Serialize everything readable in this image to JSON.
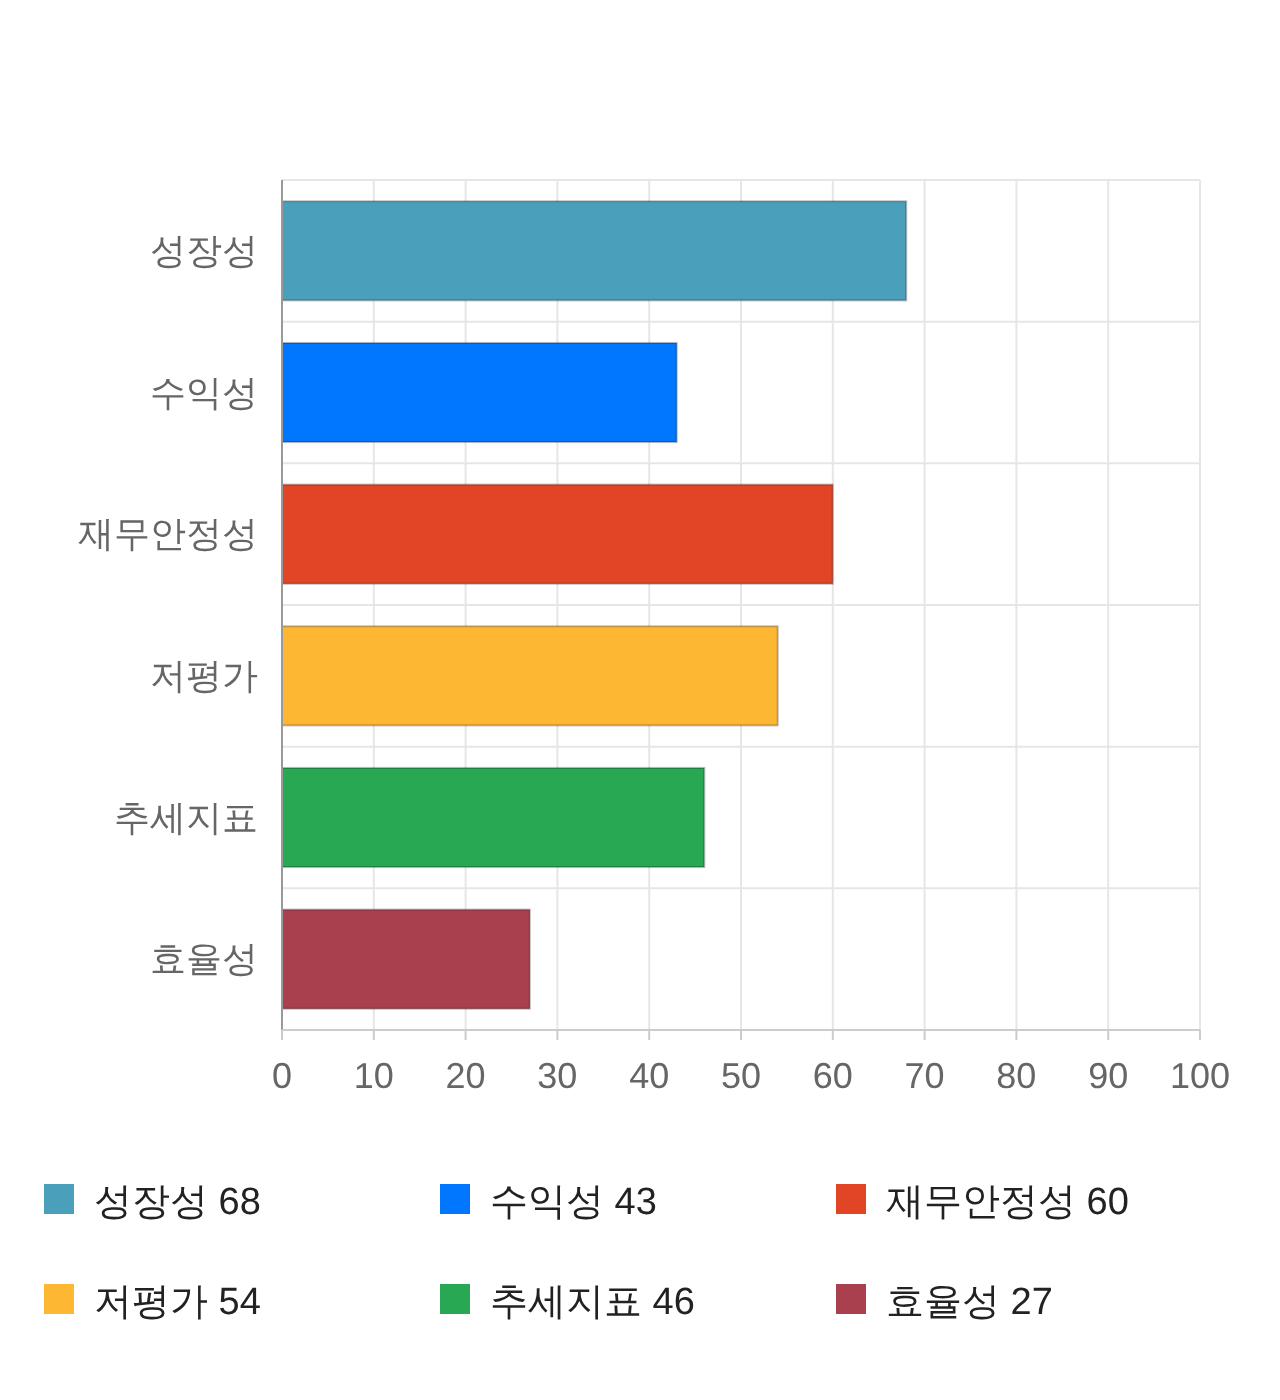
{
  "chart_data": {
    "type": "bar",
    "orientation": "horizontal",
    "categories": [
      "성장성",
      "수익성",
      "재무안정성",
      "저평가",
      "추세지표",
      "효율성"
    ],
    "series": [
      {
        "name": "성장성 68",
        "color": "#4aa0ba",
        "values": [
          68,
          null,
          null,
          null,
          null,
          null
        ]
      },
      {
        "name": "수익성 43",
        "color": "#0077fe",
        "values": [
          null,
          43,
          null,
          null,
          null,
          null
        ]
      },
      {
        "name": "재무안정성 60",
        "color": "#e24426",
        "values": [
          null,
          null,
          60,
          null,
          null,
          null
        ]
      },
      {
        "name": "저평가 54",
        "color": "#feb732",
        "values": [
          null,
          null,
          null,
          54,
          null,
          null
        ]
      },
      {
        "name": "추세지표 46",
        "color": "#29a854",
        "values": [
          null,
          null,
          null,
          null,
          46,
          null
        ]
      },
      {
        "name": "효율성 27",
        "color": "#a8404e",
        "values": [
          null,
          null,
          null,
          null,
          null,
          27
        ]
      }
    ],
    "xlim": [
      0,
      100
    ],
    "xticks": [
      0,
      10,
      20,
      30,
      40,
      50,
      60,
      70,
      80,
      90,
      100
    ],
    "grid": true,
    "legend": "bottom"
  }
}
